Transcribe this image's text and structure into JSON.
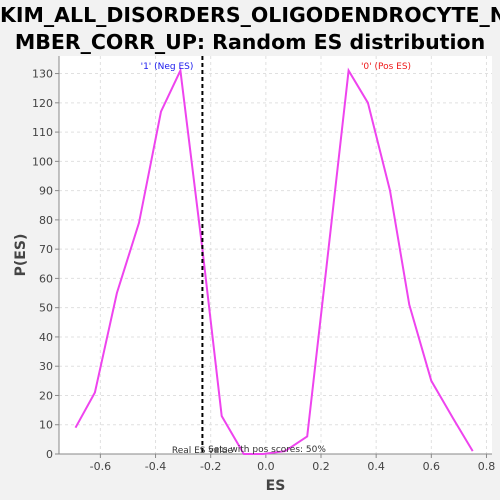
{
  "chart_data": {
    "type": "line",
    "title_line1": "KIM_ALL_DISORDERS_OLIGODENDROCYTE_NU",
    "title_line2": "MBER_CORR_UP: Random ES distribution",
    "xlabel": "ES",
    "ylabel": "P(ES)",
    "xlim": [
      -0.75,
      0.82
    ],
    "ylim": [
      0,
      136
    ],
    "xticks": [
      -0.6,
      -0.4,
      -0.2,
      0.0,
      0.2,
      0.4,
      0.6,
      0.8
    ],
    "xtick_labels": [
      "-0.6",
      "-0.4",
      "-0.2",
      "0.0",
      "0.2",
      "0.4",
      "0.6",
      "0.8"
    ],
    "yticks": [
      0,
      10,
      20,
      30,
      40,
      50,
      60,
      70,
      80,
      90,
      100,
      110,
      120,
      130
    ],
    "grid": true,
    "line_color": "#ee44ee",
    "series": [
      {
        "x": [
          -0.69,
          -0.62,
          -0.54,
          -0.46,
          -0.38,
          -0.31,
          -0.23,
          -0.16,
          -0.08,
          -0.01,
          0.07,
          0.15,
          0.22,
          0.3,
          0.37,
          0.45,
          0.52,
          0.6,
          0.68,
          0.75
        ],
        "values": [
          9,
          21,
          55,
          79,
          117,
          131,
          70,
          13,
          0,
          0,
          1,
          6,
          64,
          131,
          120,
          90,
          51,
          25,
          12,
          1
        ]
      }
    ],
    "real_es": -0.23,
    "real_es_label": "Real ES value",
    "neg_label": "'1' (Neg ES)",
    "pos_label": "'0' (Pos ES)",
    "neg_color": "#1a1aee",
    "pos_color": "#ee1a1a",
    "pos_scores_label": "Sets with pos scores: 50%"
  }
}
